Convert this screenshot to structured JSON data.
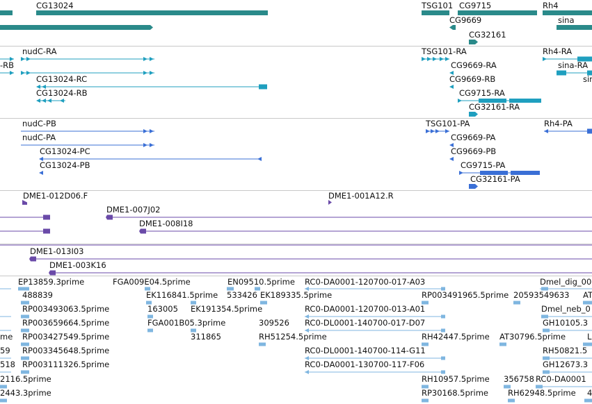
{
  "colors": {
    "gene": "#2a8a8a",
    "mrna": "#1f9fbf",
    "protein": "#3a6fd6",
    "clone": "#6a4aa8",
    "est": "#7fb6e0",
    "separator": "#c8c8c8"
  },
  "tracks": {
    "genes": {
      "labels": [
        "CG13024",
        "TSG101",
        "CG9715",
        "Rh4",
        "CG9669",
        "sina",
        "CG32161"
      ]
    },
    "transcripts": {
      "labels": [
        "nudC-RA",
        "-RB",
        "CG13024-RC",
        "CG13024-RB",
        "TSG101-RA",
        "Rh4-RA",
        "CG9669-RA",
        "sina-RA",
        "CG9669-RB",
        "CG9715-RA",
        "CG32161-RA",
        "sin"
      ]
    },
    "proteins": {
      "labels": [
        "nudC-PB",
        "nudC-PA",
        "CG13024-PC",
        "CG13024-PB",
        "TSG101-PA",
        "Rh4-PA",
        "CG9669-PA",
        "CG9669-PB",
        "CG9715-PA",
        "CG32161-PA"
      ]
    },
    "clones": {
      "labels": [
        "DME1-012D06.F",
        "DME1-001A12.R",
        "DME1-007J02",
        "DME1-008I18"
      ]
    },
    "clones2": {
      "labels": [
        "DME1-013I03",
        "DME1-003K16"
      ]
    },
    "ests": {
      "labels": [
        "EP13859.3prime",
        "FGA009E04.5prime",
        "EN09510.5prime",
        "RC0-DA0001-120700-017-A03",
        "Dmel_dig_00",
        "488839",
        "EK116841.5prime",
        "533426",
        "EK189335.5prime",
        "RP003491965.5prime",
        "20593549633",
        "AT",
        "RP003493063.5prime",
        "163005",
        "EK191354.5prime",
        "RC0-DA0001-120700-013-A01",
        "Dmel_neb_0",
        "RP003659664.5prime",
        "FGA001B05.3prime",
        "309526",
        "RC0-DL0001-140700-017-D07",
        "GH10105.3",
        "me",
        "RP003427549.5prime",
        "311865",
        "RH51254.5prime",
        "RH42447.5prime",
        "AT30796.5prime",
        "L",
        "59",
        "RP003345648.5prime",
        "RC0-DL0001-140700-114-G11",
        "RH50821.5",
        "518",
        "RP003111326.5prime",
        "RC0-DA0001-130700-117-F06",
        "GH12673.3",
        "2116.5prime",
        "RH10957.5prime",
        "356758",
        "RC0-DA0001",
        "2443.3prime",
        "RP30168.5prime",
        "RH62948.5prime",
        "4"
      ]
    }
  }
}
